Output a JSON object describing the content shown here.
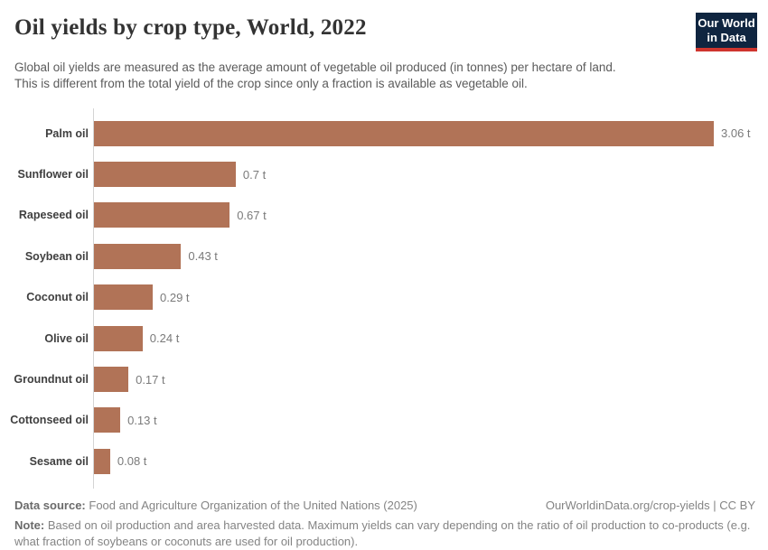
{
  "header": {
    "title": "Oil yields by crop type, World, 2022",
    "subtitle_line1": "Global oil yields are measured as the average amount of vegetable oil produced (in tonnes) per hectare of land.",
    "subtitle_line2": "This is different from the total yield of the crop since only a fraction is available as vegetable oil.",
    "logo": {
      "line1": "Our World",
      "line2": "in Data",
      "bg_color": "#0f2540",
      "accent_color": "#cf352e"
    }
  },
  "chart_data": {
    "type": "bar",
    "orientation": "horizontal",
    "title": "Oil yields by crop type, World, 2022",
    "xlabel": "",
    "ylabel": "",
    "unit": "tonnes per hectare",
    "xlim": [
      0,
      3.06
    ],
    "grid": false,
    "legend": false,
    "categories": [
      "Palm oil",
      "Sunflower oil",
      "Rapeseed oil",
      "Soybean oil",
      "Coconut oil",
      "Olive oil",
      "Groundnut oil",
      "Cottonseed oil",
      "Sesame oil"
    ],
    "values": [
      3.06,
      0.7,
      0.67,
      0.43,
      0.29,
      0.24,
      0.17,
      0.13,
      0.08
    ],
    "value_labels": [
      "3.06 t",
      "0.7 t",
      "0.67 t",
      "0.43 t",
      "0.29 t",
      "0.24 t",
      "0.17 t",
      "0.13 t",
      "0.08 t"
    ],
    "bar_color": "#b17357",
    "axis_line_color": "#d4d4d4"
  },
  "footer": {
    "data_source_label": "Data source:",
    "data_source_text": "Food and Agriculture Organization of the United Nations (2025)",
    "link_text": "OurWorldinData.org/crop-yields | CC BY",
    "note_label": "Note:",
    "note_text": "Based on oil production and area harvested data. Maximum yields can vary depending on the ratio of oil production to co-products (e.g. what fraction of soybeans or coconuts are used for oil production)."
  }
}
